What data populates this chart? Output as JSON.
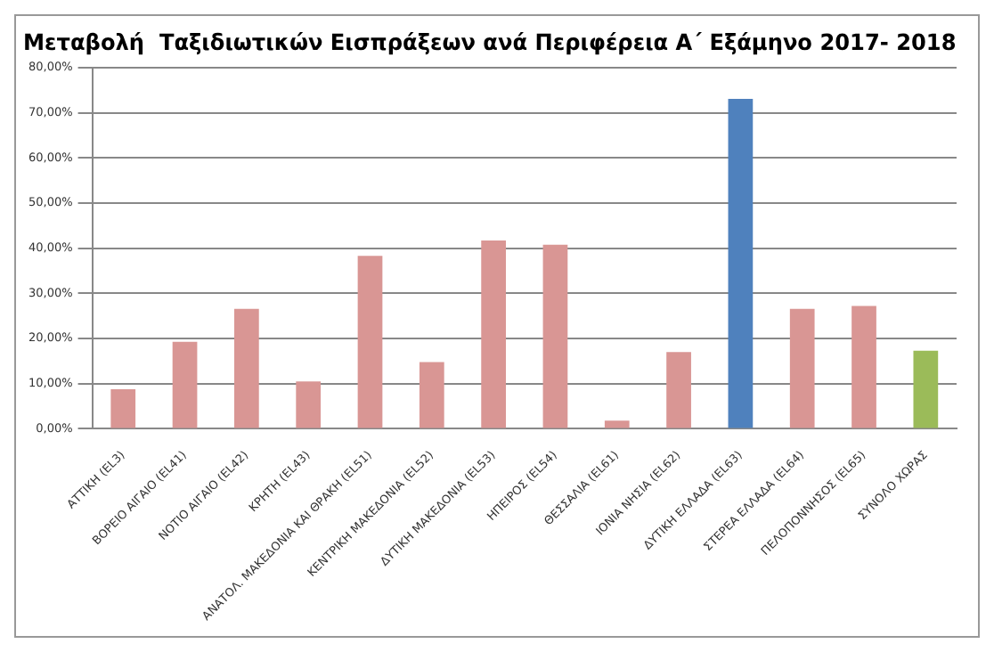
{
  "chart_data": {
    "type": "bar",
    "title": "Μεταβολή  Ταξιδιωτικών Εισπράξεων ανά Περιφέρεια Α΄ Εξάμηνο 2017- 2018",
    "categories": [
      "ΑΤΤΙΚΗ (EL3)",
      "ΒΟΡΕΙΟ ΑΙΓΑΙΟ (EL41)",
      "ΝΟΤΙΟ ΑΙΓΑΙΟ (EL42)",
      "ΚΡΗΤΗ (EL43)",
      "ΑΝΑΤΟΛ. ΜΑΚΕΔΟΝΙΑ ΚΑΙ ΘΡΑΚΗ (EL51)",
      "ΚΕΝΤΡΙΚΗ ΜΑΚΕΔΟΝΙΑ (EL52)",
      "ΔΥΤΙΚΗ ΜΑΚΕΔΟΝΙΑ (EL53)",
      "ΗΠΕΙΡΟΣ (EL54)",
      "ΘΕΣΣΑΛΙΑ (EL61)",
      "ΙΟΝΙΑ ΝΗΣΙΑ (EL62)",
      "ΔΥΤΙΚΗ ΕΛΛΑΔΑ (EL63)",
      "ΣΤΕΡΕΑ ΕΛΛΑΔΑ (EL64)",
      "ΠΕΛΟΠΟΝΝΗΣΟΣ (EL65)",
      "ΣΥΝΟΛΟ ΧΩΡΑΣ"
    ],
    "values": [
      8.8,
      19.3,
      26.6,
      10.5,
      38.3,
      14.8,
      41.7,
      40.8,
      1.8,
      17.0,
      73.1,
      26.6,
      27.2,
      17.3
    ],
    "colors": [
      "#d99694",
      "#d99694",
      "#d99694",
      "#d99694",
      "#d99694",
      "#d99694",
      "#d99694",
      "#d99694",
      "#d99694",
      "#d99694",
      "#4f81bd",
      "#d99694",
      "#d99694",
      "#9bbb59"
    ],
    "ylim": [
      0,
      80
    ],
    "yticks": [
      {
        "value": 0,
        "label": "0,00%"
      },
      {
        "value": 10,
        "label": "10,00%"
      },
      {
        "value": 20,
        "label": "20,00%"
      },
      {
        "value": 30,
        "label": "30,00%"
      },
      {
        "value": 40,
        "label": "40,00%"
      },
      {
        "value": 50,
        "label": "50,00%"
      },
      {
        "value": 60,
        "label": "60,00%"
      },
      {
        "value": 70,
        "label": "70,00%"
      },
      {
        "value": 80,
        "label": "80,00%"
      }
    ],
    "grid": "y",
    "legend": false
  }
}
